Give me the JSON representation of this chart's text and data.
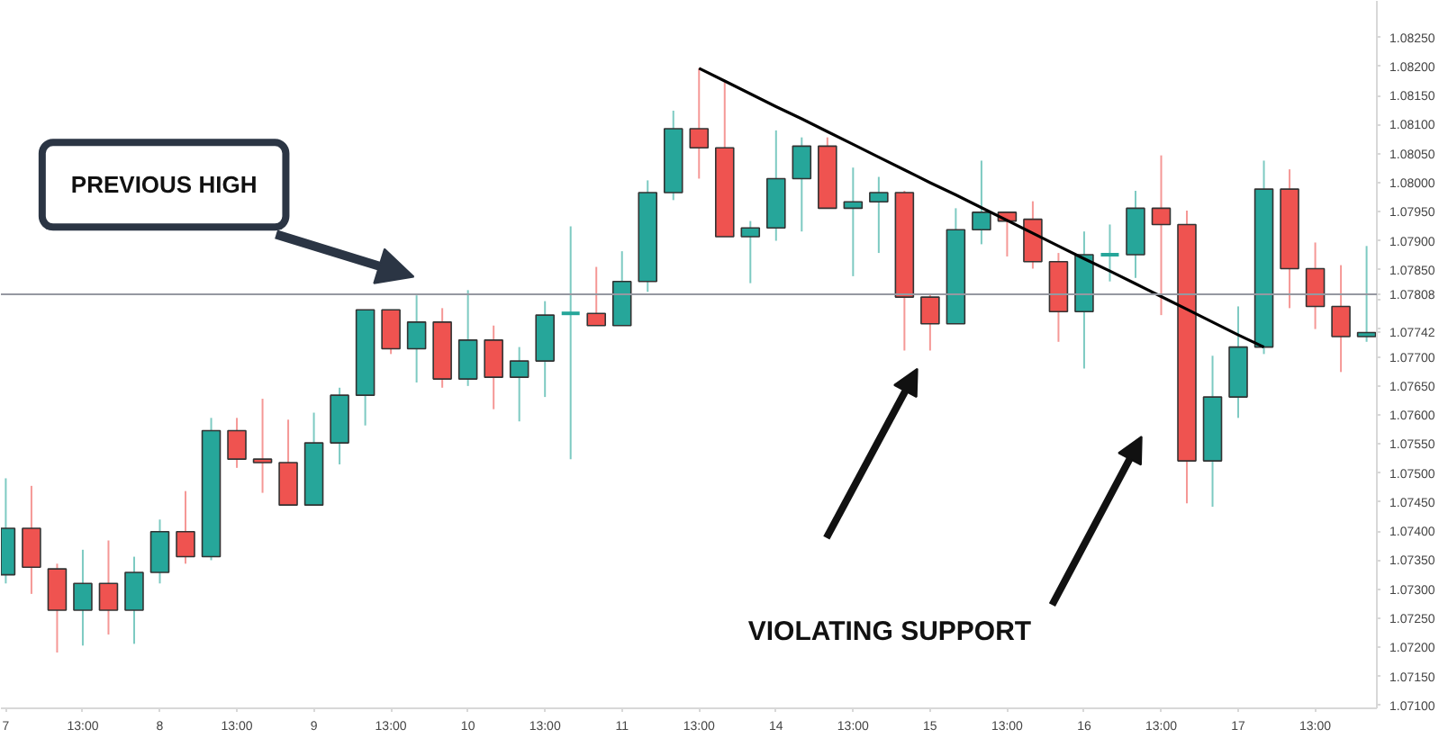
{
  "chart_data": {
    "type": "candlestick",
    "categories": [
      "7",
      null,
      null,
      "13:00",
      null,
      null,
      "8",
      null,
      null,
      "13:00",
      null,
      null,
      "9",
      null,
      null,
      "13:00",
      null,
      null,
      "10",
      null,
      null,
      "13:00",
      null,
      null,
      "11",
      null,
      null,
      "13:00",
      null,
      null,
      "14",
      null,
      null,
      "13:00",
      null,
      null,
      "15",
      null,
      null,
      "13:00",
      null,
      null,
      "16",
      null,
      null,
      "13:00",
      null,
      null,
      "17",
      null,
      null,
      "13:00",
      null,
      null
    ],
    "ohlc": [
      [
        1.07325,
        1.07491,
        1.0731,
        1.07405
      ],
      [
        1.07405,
        1.07478,
        1.07292,
        1.07338
      ],
      [
        1.07335,
        1.07344,
        1.07191,
        1.07264
      ],
      [
        1.07264,
        1.07368,
        1.07203,
        1.0731
      ],
      [
        1.0731,
        1.07384,
        1.07222,
        1.07264
      ],
      [
        1.07264,
        1.07356,
        1.07206,
        1.07329
      ],
      [
        1.07329,
        1.0742,
        1.0731,
        1.07399
      ],
      [
        1.07399,
        1.07469,
        1.07344,
        1.07356
      ],
      [
        1.07356,
        1.07595,
        1.0735,
        1.07573
      ],
      [
        1.07573,
        1.07595,
        1.07509,
        1.07524
      ],
      [
        1.07524,
        1.07628,
        1.07466,
        1.07518
      ],
      [
        1.07518,
        1.07592,
        1.07445,
        1.07445
      ],
      [
        1.07445,
        1.07604,
        1.07445,
        1.07552
      ],
      [
        1.07552,
        1.07647,
        1.07515,
        1.07634
      ],
      [
        1.07634,
        1.07781,
        1.07582,
        1.07781
      ],
      [
        1.07781,
        1.07781,
        1.07705,
        1.07714
      ],
      [
        1.07714,
        1.07806,
        1.07656,
        1.0776
      ],
      [
        1.0776,
        1.07784,
        1.07647,
        1.07662
      ],
      [
        1.07662,
        1.07815,
        1.0765,
        1.07729
      ],
      [
        1.07729,
        1.07754,
        1.0761,
        1.07665
      ],
      [
        1.07665,
        1.07717,
        1.07589,
        1.07693
      ],
      [
        1.07693,
        1.07796,
        1.07631,
        1.07772
      ],
      [
        1.07772,
        1.07925,
        1.07524,
        1.07775
      ],
      [
        1.07775,
        1.07855,
        1.07754,
        1.07754
      ],
      [
        1.07754,
        1.07882,
        1.07754,
        1.0783
      ],
      [
        1.0783,
        1.08004,
        1.07812,
        1.07983
      ],
      [
        1.07983,
        1.08124,
        1.0797,
        1.08093
      ],
      [
        1.08093,
        1.08197,
        1.08007,
        1.0806
      ],
      [
        1.0806,
        1.08173,
        1.07907,
        1.07907
      ],
      [
        1.07907,
        1.07934,
        1.07827,
        1.07922
      ],
      [
        1.07922,
        1.0809,
        1.079,
        1.08007
      ],
      [
        1.08007,
        1.08078,
        1.07916,
        1.08063
      ],
      [
        1.08063,
        1.08078,
        1.07956,
        1.07956
      ],
      [
        1.07956,
        1.08026,
        1.07839,
        1.07967
      ],
      [
        1.07967,
        1.0801,
        1.07879,
        1.07983
      ],
      [
        1.07983,
        1.07986,
        1.07711,
        1.07803
      ],
      [
        1.07803,
        1.07809,
        1.07711,
        1.07757
      ],
      [
        1.07757,
        1.07956,
        1.07757,
        1.07919
      ],
      [
        1.07919,
        1.08038,
        1.07894,
        1.07949
      ],
      [
        1.07949,
        1.07949,
        1.07873,
        1.07934
      ],
      [
        1.07937,
        1.07968,
        1.07852,
        1.07864
      ],
      [
        1.07864,
        1.07879,
        1.07726,
        1.07778
      ],
      [
        1.07778,
        1.07916,
        1.0768,
        1.07876
      ],
      [
        1.07873,
        1.07928,
        1.0783,
        1.07876
      ],
      [
        1.07876,
        1.07986,
        1.07836,
        1.07956
      ],
      [
        1.07956,
        1.08047,
        1.07772,
        1.07928
      ],
      [
        1.07928,
        1.07952,
        1.07448,
        1.07521
      ],
      [
        1.07521,
        1.07702,
        1.07442,
        1.07631
      ],
      [
        1.07631,
        1.07787,
        1.07595,
        1.07717
      ],
      [
        1.07717,
        1.08038,
        1.07705,
        1.07989
      ],
      [
        1.07989,
        1.08023,
        1.07784,
        1.07852
      ],
      [
        1.07852,
        1.07897,
        1.07748,
        1.07787
      ],
      [
        1.07787,
        1.07858,
        1.07674,
        1.07735
      ],
      [
        1.07735,
        1.07891,
        1.07726,
        1.07742
      ]
    ],
    "colors": [
      "#26a69a",
      "#ef5350",
      "#ef5350",
      "#26a69a",
      "#ef5350",
      "#26a69a",
      "#26a69a",
      "#ef5350",
      "#26a69a",
      "#ef5350",
      "#ef5350",
      "#ef5350",
      "#26a69a",
      "#26a69a",
      "#26a69a",
      "#ef5350",
      "#26a69a",
      "#ef5350",
      "#26a69a",
      "#ef5350",
      "#26a69a",
      "#26a69a",
      "#26a69a",
      "#ef5350",
      "#26a69a",
      "#26a69a",
      "#26a69a",
      "#ef5350",
      "#ef5350",
      "#26a69a",
      "#26a69a",
      "#26a69a",
      "#ef5350",
      "#26a69a",
      "#26a69a",
      "#ef5350",
      "#ef5350",
      "#26a69a",
      "#26a69a",
      "#ef5350",
      "#ef5350",
      "#ef5350",
      "#26a69a",
      "#26a69a",
      "#26a69a",
      "#ef5350",
      "#ef5350",
      "#26a69a",
      "#26a69a",
      "#26a69a",
      "#ef5350",
      "#ef5350",
      "#ef5350",
      "#26a69a"
    ],
    "series": [
      {
        "type": "line",
        "values": [
          null,
          null,
          null,
          null,
          null,
          null,
          null,
          null,
          null,
          null,
          null,
          null,
          null,
          null,
          null,
          null,
          null,
          null,
          null,
          null,
          null,
          null,
          null,
          null,
          null,
          null,
          null,
          1.08197,
          1.08175,
          1.08153,
          1.08131,
          1.0811,
          1.08088,
          1.08066,
          1.08044,
          1.08022,
          1.08,
          1.07979,
          1.07957,
          1.07935,
          1.07913,
          1.07891,
          1.07869,
          1.07848,
          1.07826,
          1.07804,
          1.07782,
          1.0776,
          1.07738,
          1.07717,
          null,
          null,
          null,
          null
        ],
        "color": "#000000"
      }
    ],
    "ylim": [
      1.07095,
      1.08313
    ],
    "yticks": [
      {
        "value": 1.071,
        "label": "1.07100"
      },
      {
        "value": 1.0715,
        "label": "1.07150"
      },
      {
        "value": 1.072,
        "label": "1.07200"
      },
      {
        "value": 1.0725,
        "label": "1.07250"
      },
      {
        "value": 1.073,
        "label": "1.07300"
      },
      {
        "value": 1.0735,
        "label": "1.07350"
      },
      {
        "value": 1.074,
        "label": "1.07400"
      },
      {
        "value": 1.0745,
        "label": "1.07450"
      },
      {
        "value": 1.075,
        "label": "1.07500"
      },
      {
        "value": 1.0755,
        "label": "1.07550"
      },
      {
        "value": 1.076,
        "label": "1.07600"
      },
      {
        "value": 1.0765,
        "label": "1.07650"
      },
      {
        "value": 1.077,
        "label": "1.07700"
      },
      {
        "value": 1.07742,
        "label": "1.07742"
      },
      {
        "value": 1.0775,
        "label": null
      },
      {
        "value": 1.078,
        "label": null
      },
      {
        "value": 1.0785,
        "label": "1.07850"
      },
      {
        "value": 1.079,
        "label": "1.07900"
      },
      {
        "value": 1.0795,
        "label": "1.07950"
      },
      {
        "value": 1.08,
        "label": "1.08000"
      },
      {
        "value": 1.0805,
        "label": "1.08050"
      },
      {
        "value": 1.081,
        "label": "1.08100"
      },
      {
        "value": 1.0815,
        "label": "1.08150"
      },
      {
        "value": 1.082,
        "label": "1.08200"
      },
      {
        "value": 1.0825,
        "label": "1.08250"
      }
    ],
    "ref_lines": [
      {
        "axis": "y",
        "value": 1.07808,
        "label": "1.07808",
        "color": "#9598a1"
      }
    ],
    "annotations": [
      "PREVIOUS HIGH",
      "VIOLATING SUPPORT"
    ],
    "grid": false
  }
}
